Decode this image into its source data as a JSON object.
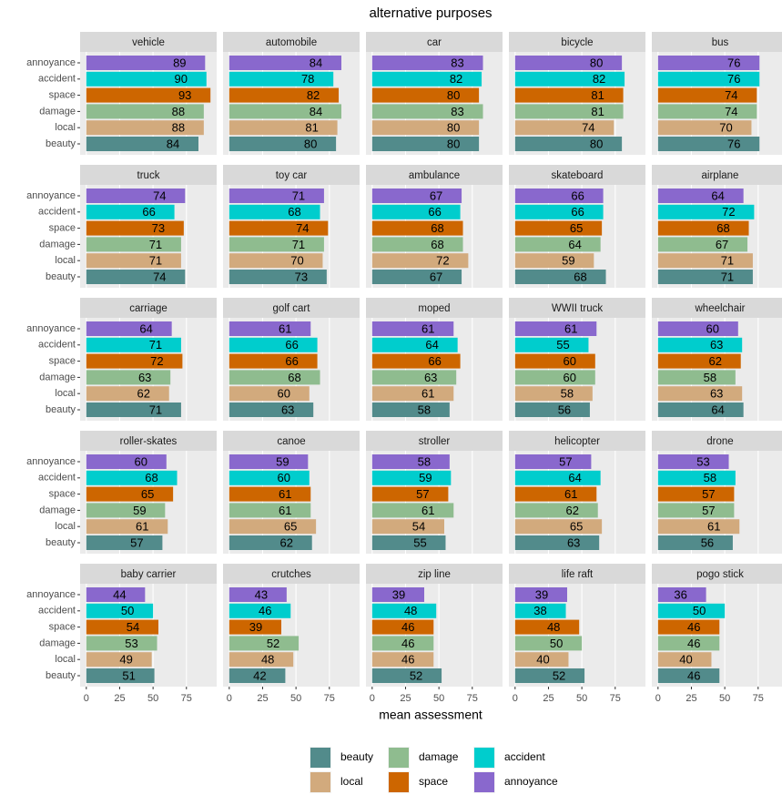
{
  "chart_data": {
    "type": "bar",
    "orientation": "horizontal",
    "title": "alternative purposes",
    "x_label": "mean assessment",
    "categories": [
      "annoyance",
      "accident",
      "space",
      "damage",
      "local",
      "beauty"
    ],
    "colors": [
      "#8968CD",
      "#00CDCD",
      "#CD6600",
      "#8FBC8F",
      "#D2AA7D",
      "#528B8B"
    ],
    "xlim": [
      -4.65,
      97.65
    ],
    "xticks": [
      0,
      25,
      50,
      75
    ],
    "grid": true,
    "facets": [
      {
        "name": "vehicle",
        "values": [
          89,
          90,
          93,
          88,
          88,
          84
        ]
      },
      {
        "name": "automobile",
        "values": [
          84,
          78,
          82,
          84,
          81,
          80
        ]
      },
      {
        "name": "car",
        "values": [
          83,
          82,
          80,
          83,
          80,
          80
        ]
      },
      {
        "name": "bicycle",
        "values": [
          80,
          82,
          81,
          81,
          74,
          80
        ]
      },
      {
        "name": "bus",
        "values": [
          76,
          76,
          74,
          74,
          70,
          76
        ]
      },
      {
        "name": "truck",
        "values": [
          74,
          66,
          73,
          71,
          71,
          74
        ]
      },
      {
        "name": "toy car",
        "values": [
          71,
          68,
          74,
          71,
          70,
          73
        ]
      },
      {
        "name": "ambulance",
        "values": [
          67,
          66,
          68,
          68,
          72,
          67
        ]
      },
      {
        "name": "skateboard",
        "values": [
          66,
          66,
          65,
          64,
          59,
          68
        ]
      },
      {
        "name": "airplane",
        "values": [
          64,
          72,
          68,
          67,
          71,
          71
        ]
      },
      {
        "name": "carriage",
        "values": [
          64,
          71,
          72,
          63,
          62,
          71
        ]
      },
      {
        "name": "golf cart",
        "values": [
          61,
          66,
          66,
          68,
          60,
          63
        ]
      },
      {
        "name": "moped",
        "values": [
          61,
          64,
          66,
          63,
          61,
          58
        ]
      },
      {
        "name": "WWII truck",
        "values": [
          61,
          55,
          60,
          60,
          58,
          56
        ]
      },
      {
        "name": "wheelchair",
        "values": [
          60,
          63,
          62,
          58,
          63,
          64
        ]
      },
      {
        "name": "roller-skates",
        "values": [
          60,
          68,
          65,
          59,
          61,
          57
        ]
      },
      {
        "name": "canoe",
        "values": [
          59,
          60,
          61,
          61,
          65,
          62
        ]
      },
      {
        "name": "stroller",
        "values": [
          58,
          59,
          57,
          61,
          54,
          55
        ]
      },
      {
        "name": "helicopter",
        "values": [
          57,
          64,
          61,
          62,
          65,
          63
        ]
      },
      {
        "name": "drone",
        "values": [
          53,
          58,
          57,
          57,
          61,
          56
        ]
      },
      {
        "name": "baby carrier",
        "values": [
          44,
          50,
          54,
          53,
          49,
          51
        ]
      },
      {
        "name": "crutches",
        "values": [
          43,
          46,
          39,
          52,
          48,
          42
        ]
      },
      {
        "name": "zip line",
        "values": [
          39,
          48,
          46,
          46,
          46,
          52
        ]
      },
      {
        "name": "life raft",
        "values": [
          39,
          38,
          48,
          50,
          40,
          52
        ]
      },
      {
        "name": "pogo stick",
        "values": [
          36,
          50,
          46,
          46,
          40,
          46
        ]
      }
    ]
  }
}
